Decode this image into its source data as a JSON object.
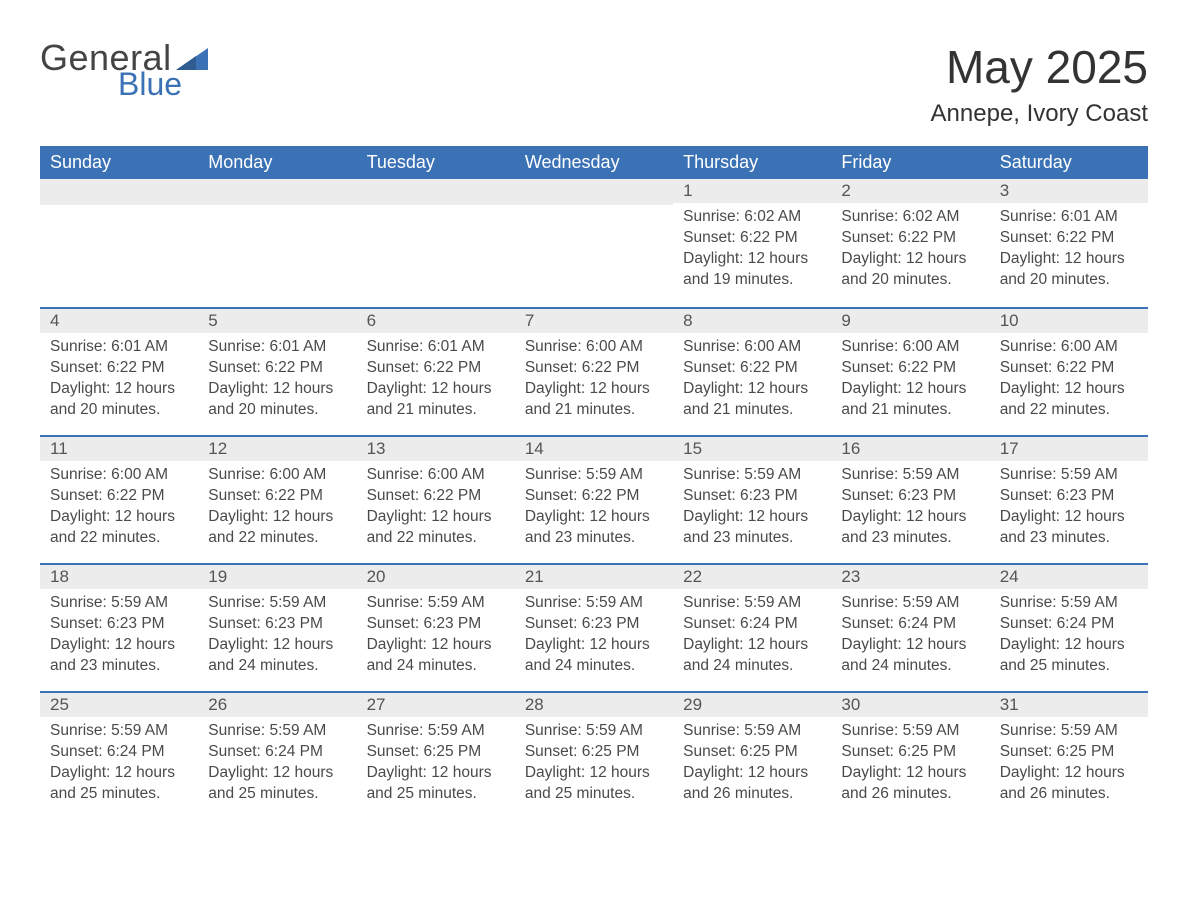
{
  "brand": {
    "word1": "General",
    "word2": "Blue"
  },
  "header": {
    "title": "May 2025",
    "location": "Annepe, Ivory Coast"
  },
  "colors": {
    "accent": "#3b72b6",
    "row_bg": "#ececec",
    "background": "#ffffff",
    "text": "#3a3a3a"
  },
  "calendar": {
    "columns": [
      "Sunday",
      "Monday",
      "Tuesday",
      "Wednesday",
      "Thursday",
      "Friday",
      "Saturday"
    ],
    "label_prefixes": {
      "sunrise": "Sunrise: ",
      "sunset": "Sunset: ",
      "daylight": "Daylight: "
    },
    "weeks": [
      [
        null,
        null,
        null,
        null,
        {
          "n": "1",
          "sunrise": "6:02 AM",
          "sunset": "6:22 PM",
          "daylight": "12 hours and 19 minutes."
        },
        {
          "n": "2",
          "sunrise": "6:02 AM",
          "sunset": "6:22 PM",
          "daylight": "12 hours and 20 minutes."
        },
        {
          "n": "3",
          "sunrise": "6:01 AM",
          "sunset": "6:22 PM",
          "daylight": "12 hours and 20 minutes."
        }
      ],
      [
        {
          "n": "4",
          "sunrise": "6:01 AM",
          "sunset": "6:22 PM",
          "daylight": "12 hours and 20 minutes."
        },
        {
          "n": "5",
          "sunrise": "6:01 AM",
          "sunset": "6:22 PM",
          "daylight": "12 hours and 20 minutes."
        },
        {
          "n": "6",
          "sunrise": "6:01 AM",
          "sunset": "6:22 PM",
          "daylight": "12 hours and 21 minutes."
        },
        {
          "n": "7",
          "sunrise": "6:00 AM",
          "sunset": "6:22 PM",
          "daylight": "12 hours and 21 minutes."
        },
        {
          "n": "8",
          "sunrise": "6:00 AM",
          "sunset": "6:22 PM",
          "daylight": "12 hours and 21 minutes."
        },
        {
          "n": "9",
          "sunrise": "6:00 AM",
          "sunset": "6:22 PM",
          "daylight": "12 hours and 21 minutes."
        },
        {
          "n": "10",
          "sunrise": "6:00 AM",
          "sunset": "6:22 PM",
          "daylight": "12 hours and 22 minutes."
        }
      ],
      [
        {
          "n": "11",
          "sunrise": "6:00 AM",
          "sunset": "6:22 PM",
          "daylight": "12 hours and 22 minutes."
        },
        {
          "n": "12",
          "sunrise": "6:00 AM",
          "sunset": "6:22 PM",
          "daylight": "12 hours and 22 minutes."
        },
        {
          "n": "13",
          "sunrise": "6:00 AM",
          "sunset": "6:22 PM",
          "daylight": "12 hours and 22 minutes."
        },
        {
          "n": "14",
          "sunrise": "5:59 AM",
          "sunset": "6:22 PM",
          "daylight": "12 hours and 23 minutes."
        },
        {
          "n": "15",
          "sunrise": "5:59 AM",
          "sunset": "6:23 PM",
          "daylight": "12 hours and 23 minutes."
        },
        {
          "n": "16",
          "sunrise": "5:59 AM",
          "sunset": "6:23 PM",
          "daylight": "12 hours and 23 minutes."
        },
        {
          "n": "17",
          "sunrise": "5:59 AM",
          "sunset": "6:23 PM",
          "daylight": "12 hours and 23 minutes."
        }
      ],
      [
        {
          "n": "18",
          "sunrise": "5:59 AM",
          "sunset": "6:23 PM",
          "daylight": "12 hours and 23 minutes."
        },
        {
          "n": "19",
          "sunrise": "5:59 AM",
          "sunset": "6:23 PM",
          "daylight": "12 hours and 24 minutes."
        },
        {
          "n": "20",
          "sunrise": "5:59 AM",
          "sunset": "6:23 PM",
          "daylight": "12 hours and 24 minutes."
        },
        {
          "n": "21",
          "sunrise": "5:59 AM",
          "sunset": "6:23 PM",
          "daylight": "12 hours and 24 minutes."
        },
        {
          "n": "22",
          "sunrise": "5:59 AM",
          "sunset": "6:24 PM",
          "daylight": "12 hours and 24 minutes."
        },
        {
          "n": "23",
          "sunrise": "5:59 AM",
          "sunset": "6:24 PM",
          "daylight": "12 hours and 24 minutes."
        },
        {
          "n": "24",
          "sunrise": "5:59 AM",
          "sunset": "6:24 PM",
          "daylight": "12 hours and 25 minutes."
        }
      ],
      [
        {
          "n": "25",
          "sunrise": "5:59 AM",
          "sunset": "6:24 PM",
          "daylight": "12 hours and 25 minutes."
        },
        {
          "n": "26",
          "sunrise": "5:59 AM",
          "sunset": "6:24 PM",
          "daylight": "12 hours and 25 minutes."
        },
        {
          "n": "27",
          "sunrise": "5:59 AM",
          "sunset": "6:25 PM",
          "daylight": "12 hours and 25 minutes."
        },
        {
          "n": "28",
          "sunrise": "5:59 AM",
          "sunset": "6:25 PM",
          "daylight": "12 hours and 25 minutes."
        },
        {
          "n": "29",
          "sunrise": "5:59 AM",
          "sunset": "6:25 PM",
          "daylight": "12 hours and 26 minutes."
        },
        {
          "n": "30",
          "sunrise": "5:59 AM",
          "sunset": "6:25 PM",
          "daylight": "12 hours and 26 minutes."
        },
        {
          "n": "31",
          "sunrise": "5:59 AM",
          "sunset": "6:25 PM",
          "daylight": "12 hours and 26 minutes."
        }
      ]
    ]
  }
}
